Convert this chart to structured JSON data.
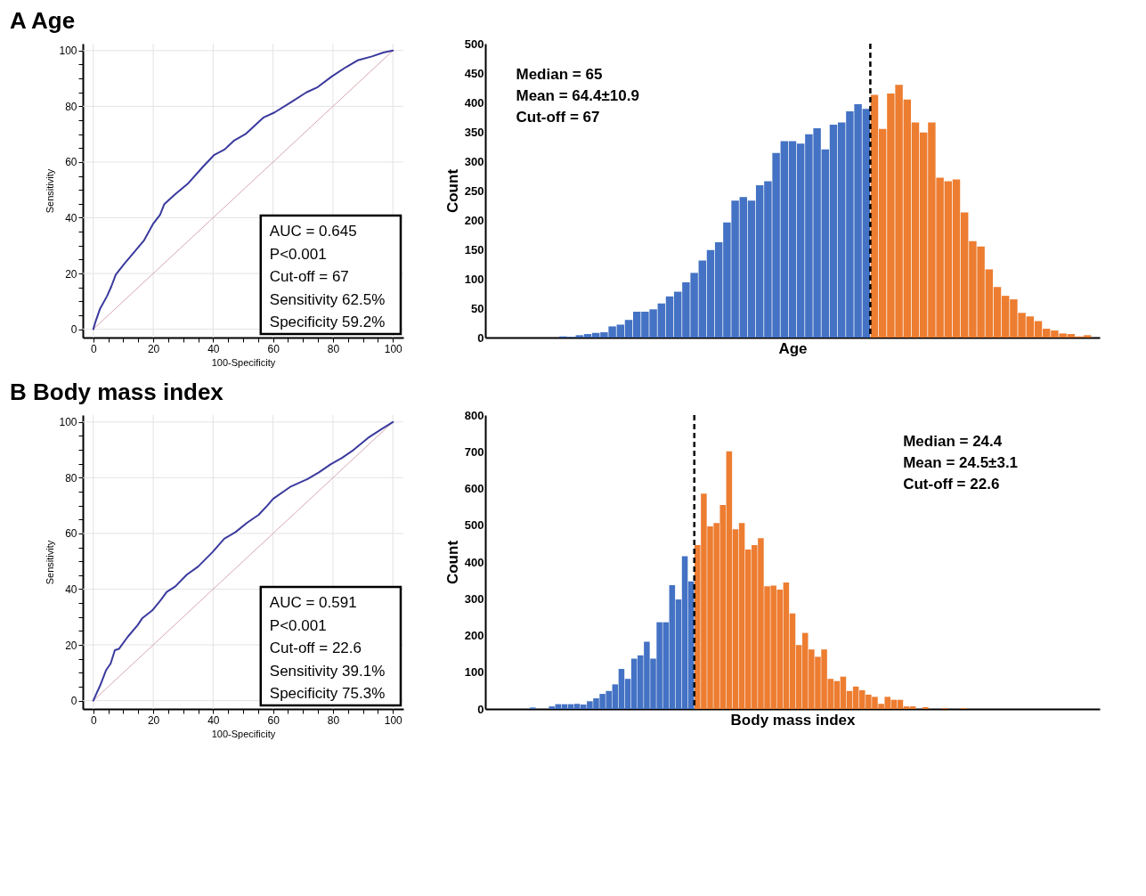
{
  "chart_data": [
    {
      "type": "line",
      "title": "A Age",
      "xlabel": "100-Specificity",
      "ylabel": "Sensitivity",
      "xlim": [
        -3.5,
        103.5
      ],
      "ylim": [
        -3,
        102.5
      ],
      "xticks": [
        0,
        {
          "value": 5,
          "label": null
        },
        {
          "value": 10,
          "label": null
        },
        {
          "value": 15,
          "label": null
        },
        20,
        {
          "value": 25,
          "label": null
        },
        {
          "value": 30,
          "label": null
        },
        {
          "value": 35,
          "label": null
        },
        40,
        {
          "value": 45,
          "label": null
        },
        {
          "value": 50,
          "label": null
        },
        {
          "value": 55,
          "label": null
        },
        60,
        {
          "value": 65,
          "label": null
        },
        {
          "value": 70,
          "label": null
        },
        {
          "value": 75,
          "label": null
        },
        80,
        {
          "value": 85,
          "label": null
        },
        {
          "value": 90,
          "label": null
        },
        {
          "value": 95,
          "label": null
        },
        100
      ],
      "yticks": [
        0,
        {
          "value": 5,
          "label": null
        },
        {
          "value": 10,
          "label": null
        },
        {
          "value": 15,
          "label": null
        },
        20,
        {
          "value": 25,
          "label": null
        },
        {
          "value": 30,
          "label": null
        },
        {
          "value": 35,
          "label": null
        },
        40,
        {
          "value": 45,
          "label": null
        },
        {
          "value": 50,
          "label": null
        },
        {
          "value": 55,
          "label": null
        },
        60,
        {
          "value": 65,
          "label": null
        },
        {
          "value": 70,
          "label": null
        },
        {
          "value": 75,
          "label": null
        },
        80,
        {
          "value": 85,
          "label": null
        },
        {
          "value": 90,
          "label": null
        },
        {
          "value": 95,
          "label": null
        },
        100
      ],
      "grid": true,
      "series": [
        {
          "type": "line",
          "color": "#3a3a9e",
          "x": [
            0,
            0.8,
            2.2,
            4.6,
            6,
            7.5,
            10.3,
            13.7,
            17,
            19.9,
            22.3,
            23.7,
            27.1,
            31.8,
            36.6,
            40.4,
            43.8,
            47.1,
            51,
            56.7,
            60.5,
            66.3,
            71.1,
            74.9,
            79.6,
            84.4,
            88.2,
            93,
            96.8,
            100
          ],
          "values": [
            0,
            2.9,
            7.2,
            11.9,
            15.3,
            19.6,
            23.4,
            27.7,
            32,
            37.7,
            41.1,
            44.9,
            48.2,
            52.5,
            58.3,
            62.6,
            64.5,
            67.8,
            70.2,
            75.9,
            77.8,
            81.7,
            85,
            86.9,
            90.7,
            94.1,
            96.5,
            97.9,
            99.3,
            100
          ]
        },
        {
          "type": "line",
          "color": "#d8a7b1",
          "x": [
            0,
            100
          ],
          "values": [
            0,
            100
          ]
        }
      ],
      "annotations": [
        "AUC = 0.645",
        "P<0.001",
        "Cut-off = 67",
        "Sensitivity 62.5%",
        "Specificity 59.2%"
      ]
    },
    {
      "type": "bar",
      "xlabel": "Age",
      "ylabel": "Count",
      "ylim": [
        0,
        500
      ],
      "yticks": [
        0,
        50,
        100,
        150,
        200,
        250,
        300,
        350,
        400,
        450,
        500
      ],
      "categories": [
        null,
        null,
        null,
        null,
        null,
        null,
        null,
        null,
        null,
        null,
        null,
        null,
        null,
        null,
        null,
        null,
        null,
        null,
        null,
        null,
        null,
        null,
        null,
        null,
        null,
        null,
        null,
        null,
        null,
        null,
        null,
        null,
        null,
        null,
        null,
        null,
        null,
        null,
        null,
        null,
        null,
        null,
        null,
        null,
        null,
        null,
        null,
        null,
        null,
        null,
        null,
        null,
        null,
        null,
        null,
        null,
        null,
        null,
        null,
        null,
        null,
        null,
        null,
        null,
        null,
        null,
        null,
        null,
        null,
        null,
        null,
        null,
        null,
        null,
        null
      ],
      "values": [
        null,
        null,
        null,
        null,
        null,
        null,
        null,
        null,
        null,
        2,
        1,
        4,
        6,
        8,
        9,
        19,
        22,
        30,
        44,
        44,
        48,
        58,
        70,
        78,
        94,
        110,
        131,
        149,
        162,
        196,
        233,
        239,
        233,
        259,
        266,
        314,
        334,
        334,
        330,
        346,
        356,
        320,
        362,
        366,
        385,
        397,
        389,
        413,
        355,
        415,
        430,
        405,
        366,
        349,
        366,
        272,
        266,
        269,
        213,
        164,
        155,
        116,
        86,
        71,
        65,
        42,
        36,
        28,
        15,
        12,
        7,
        6,
        2,
        4,
        null
      ],
      "colors": [
        "#4472c4",
        "#4472c4",
        "#4472c4",
        "#4472c4",
        "#4472c4",
        "#4472c4",
        "#4472c4",
        "#4472c4",
        "#4472c4",
        "#4472c4",
        "#4472c4",
        "#4472c4",
        "#4472c4",
        "#4472c4",
        "#4472c4",
        "#4472c4",
        "#4472c4",
        "#4472c4",
        "#4472c4",
        "#4472c4",
        "#4472c4",
        "#4472c4",
        "#4472c4",
        "#4472c4",
        "#4472c4",
        "#4472c4",
        "#4472c4",
        "#4472c4",
        "#4472c4",
        "#4472c4",
        "#4472c4",
        "#4472c4",
        "#4472c4",
        "#4472c4",
        "#4472c4",
        "#4472c4",
        "#4472c4",
        "#4472c4",
        "#4472c4",
        "#4472c4",
        "#4472c4",
        "#4472c4",
        "#4472c4",
        "#4472c4",
        "#4472c4",
        "#4472c4",
        "#4472c4",
        "#ed7d31",
        "#ed7d31",
        "#ed7d31",
        "#ed7d31",
        "#ed7d31",
        "#ed7d31",
        "#ed7d31",
        "#ed7d31",
        "#ed7d31",
        "#ed7d31",
        "#ed7d31",
        "#ed7d31",
        "#ed7d31",
        "#ed7d31",
        "#ed7d31",
        "#ed7d31",
        "#ed7d31",
        "#ed7d31",
        "#ed7d31",
        "#ed7d31",
        "#ed7d31",
        "#ed7d31",
        "#ed7d31",
        "#ed7d31",
        "#ed7d31",
        "#ed7d31",
        "#ed7d31",
        "#ed7d31"
      ],
      "annotations": [
        "Median = 65",
        "Mean = 64.4±10.9",
        "Cut-off = 67"
      ]
    },
    {
      "type": "line",
      "title": "B Body mass index",
      "xlabel": "100-Specificity",
      "ylabel": "Sensitivity",
      "xlim": [
        -3.5,
        103.5
      ],
      "ylim": [
        -3,
        102.5
      ],
      "xticks": [
        0,
        {
          "value": 5,
          "label": null
        },
        {
          "value": 10,
          "label": null
        },
        {
          "value": 15,
          "label": null
        },
        20,
        {
          "value": 25,
          "label": null
        },
        {
          "value": 30,
          "label": null
        },
        {
          "value": 35,
          "label": null
        },
        40,
        {
          "value": 45,
          "label": null
        },
        {
          "value": 50,
          "label": null
        },
        {
          "value": 55,
          "label": null
        },
        60,
        {
          "value": 65,
          "label": null
        },
        {
          "value": 70,
          "label": null
        },
        {
          "value": 75,
          "label": null
        },
        80,
        {
          "value": 85,
          "label": null
        },
        {
          "value": 90,
          "label": null
        },
        {
          "value": 95,
          "label": null
        },
        100
      ],
      "yticks": [
        0,
        {
          "value": 5,
          "label": null
        },
        {
          "value": 10,
          "label": null
        },
        {
          "value": 15,
          "label": null
        },
        20,
        {
          "value": 25,
          "label": null
        },
        {
          "value": 30,
          "label": null
        },
        {
          "value": 35,
          "label": null
        },
        40,
        {
          "value": 45,
          "label": null
        },
        {
          "value": 50,
          "label": null
        },
        {
          "value": 55,
          "label": null
        },
        60,
        {
          "value": 65,
          "label": null
        },
        {
          "value": 70,
          "label": null
        },
        {
          "value": 75,
          "label": null
        },
        80,
        {
          "value": 85,
          "label": null
        },
        {
          "value": 90,
          "label": null
        },
        {
          "value": 95,
          "label": null
        },
        100
      ],
      "grid": true,
      "series": [
        {
          "type": "line",
          "color": "#3a3a9e",
          "x": [
            0,
            1,
            2.4,
            4.3,
            5.8,
            7.2,
            8.6,
            11.5,
            14.8,
            16.3,
            19.7,
            22.6,
            24.5,
            27.4,
            31.2,
            35,
            39.8,
            43.7,
            47.5,
            51.3,
            55.2,
            58.1,
            60,
            65.7,
            71.5,
            75.3,
            79.2,
            83,
            86.9,
            91.7,
            96.4,
            100
          ],
          "values": [
            0,
            2.4,
            5.7,
            11,
            13.3,
            18.1,
            18.6,
            22.9,
            27.1,
            29.5,
            32.4,
            36.2,
            39,
            41,
            45.2,
            48.1,
            53.3,
            58.1,
            60.5,
            63.8,
            66.7,
            70,
            72.4,
            76.7,
            79.5,
            81.9,
            84.8,
            87.1,
            90,
            94.3,
            97.6,
            100
          ]
        },
        {
          "type": "line",
          "color": "#d8a7b1",
          "x": [
            0,
            100
          ],
          "values": [
            0,
            100
          ]
        }
      ],
      "annotations": [
        "AUC = 0.591",
        "P<0.001",
        "Cut-off = 22.6",
        "Sensitivity 39.1%",
        "Specificity 75.3%"
      ]
    },
    {
      "type": "bar",
      "xlabel": "Body mass index",
      "ylabel": "Count",
      "ylim": [
        0,
        800
      ],
      "yticks": [
        0,
        100,
        200,
        300,
        400,
        500,
        600,
        700,
        800
      ],
      "categories": [
        null,
        null,
        null,
        null,
        null,
        null,
        null,
        null,
        null,
        null,
        null,
        null,
        null,
        null,
        null,
        null,
        null,
        null,
        null,
        null,
        null,
        null,
        null,
        null,
        null,
        null,
        null,
        null,
        null,
        null,
        null,
        null,
        null,
        null,
        null,
        null,
        null,
        null,
        null,
        null,
        null,
        null,
        null,
        null,
        null,
        null,
        null,
        null,
        null,
        null,
        null,
        null,
        null,
        null,
        null,
        null,
        null,
        null,
        null,
        null,
        null,
        null,
        null,
        null,
        null,
        null,
        null,
        null,
        null,
        null,
        null,
        null,
        null,
        null,
        null,
        null,
        null,
        null,
        null,
        null,
        null,
        null,
        null,
        null,
        null,
        null,
        null,
        null,
        null,
        null,
        null,
        null,
        null,
        null,
        null,
        null,
        null
      ],
      "values": [
        null,
        null,
        null,
        null,
        null,
        null,
        null,
        4,
        0,
        0,
        7,
        13,
        13,
        13,
        14,
        12,
        21,
        29,
        41,
        49,
        67,
        109,
        82,
        137,
        146,
        183,
        137,
        236,
        236,
        337,
        298,
        416,
        347,
        446,
        586,
        497,
        506,
        555,
        701,
        489,
        506,
        434,
        446,
        465,
        334,
        336,
        325,
        344,
        260,
        174,
        207,
        162,
        142,
        162,
        82,
        76,
        88,
        49,
        61,
        51,
        39,
        33,
        14,
        33,
        25,
        25,
        7,
        7,
        0,
        5,
        0,
        0,
        2,
        0,
        0,
        2,
        null,
        null,
        null,
        null,
        null,
        null,
        null,
        null,
        null,
        null,
        null,
        null,
        null,
        null,
        null,
        null,
        null,
        null,
        null,
        null,
        null
      ],
      "colors": [
        "#4472c4",
        "#4472c4",
        "#4472c4",
        "#4472c4",
        "#4472c4",
        "#4472c4",
        "#4472c4",
        "#4472c4",
        "#4472c4",
        "#4472c4",
        "#4472c4",
        "#4472c4",
        "#4472c4",
        "#4472c4",
        "#4472c4",
        "#4472c4",
        "#4472c4",
        "#4472c4",
        "#4472c4",
        "#4472c4",
        "#4472c4",
        "#4472c4",
        "#4472c4",
        "#4472c4",
        "#4472c4",
        "#4472c4",
        "#4472c4",
        "#4472c4",
        "#4472c4",
        "#4472c4",
        "#4472c4",
        "#4472c4",
        "#4472c4",
        "#ed7d31",
        "#ed7d31",
        "#ed7d31",
        "#ed7d31",
        "#ed7d31",
        "#ed7d31",
        "#ed7d31",
        "#ed7d31",
        "#ed7d31",
        "#ed7d31",
        "#ed7d31",
        "#ed7d31",
        "#ed7d31",
        "#ed7d31",
        "#ed7d31",
        "#ed7d31",
        "#ed7d31",
        "#ed7d31",
        "#ed7d31",
        "#ed7d31",
        "#ed7d31",
        "#ed7d31",
        "#ed7d31",
        "#ed7d31",
        "#ed7d31",
        "#ed7d31",
        "#ed7d31",
        "#ed7d31",
        "#ed7d31",
        "#ed7d31",
        "#ed7d31",
        "#ed7d31",
        "#ed7d31",
        "#ed7d31",
        "#ed7d31",
        "#ed7d31",
        "#ed7d31",
        "#ed7d31",
        "#ed7d31",
        "#ed7d31",
        "#ed7d31",
        "#ed7d31",
        "#ed7d31",
        "#ed7d31",
        "#ed7d31",
        "#ed7d31",
        "#ed7d31",
        "#ed7d31",
        "#ed7d31",
        "#ed7d31",
        "#ed7d31",
        "#ed7d31",
        "#ed7d31",
        "#ed7d31",
        "#ed7d31",
        "#ed7d31",
        "#ed7d31",
        "#ed7d31",
        "#ed7d31",
        "#ed7d31",
        "#ed7d31",
        "#ed7d31",
        "#ed7d31",
        "#ed7d31"
      ],
      "annotations": [
        "Median = 24.4",
        "Mean = 24.5±3.1",
        "Cut-off = 22.6"
      ]
    }
  ]
}
